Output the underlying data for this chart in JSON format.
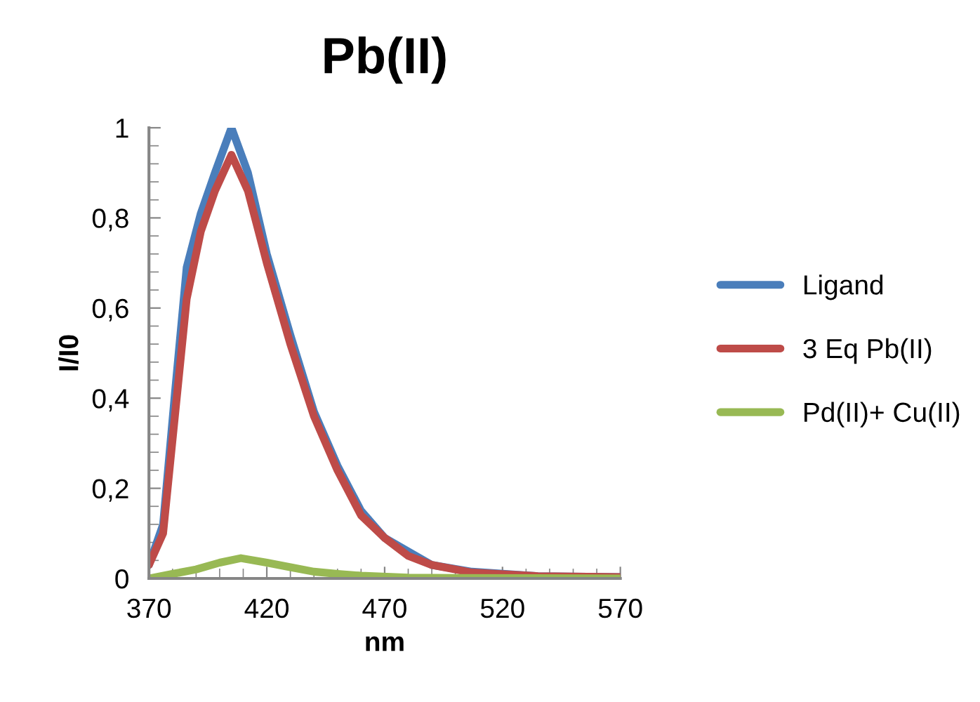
{
  "chart_data": {
    "type": "line",
    "title": "Pb(II)",
    "xlabel": "nm",
    "ylabel": "I/I0",
    "xlim": [
      370,
      570
    ],
    "xticks": [
      370,
      420,
      470,
      520,
      570
    ],
    "ylim": [
      0,
      1
    ],
    "yticks": [
      0,
      {
        "value": 0.2,
        "label": "0,2"
      },
      {
        "value": 0.4,
        "label": "0,4"
      },
      {
        "value": 0.6,
        "label": "0,6"
      },
      {
        "value": 0.8,
        "label": "0,8"
      },
      1
    ],
    "grid": false,
    "legend": "right",
    "marker": "none",
    "line_style": "solid",
    "series": [
      {
        "name": "Ligand",
        "color": "#4a7ebb",
        "x": [
          370,
          376,
          381,
          386,
          392,
          398,
          405,
          412,
          420,
          430,
          440,
          450,
          460,
          470,
          480,
          490,
          507,
          535,
          570
        ],
        "values": [
          0.03,
          0.12,
          0.41,
          0.69,
          0.81,
          0.9,
          1.0,
          0.9,
          0.72,
          0.54,
          0.37,
          0.25,
          0.15,
          0.09,
          0.06,
          0.03,
          0.015,
          0.005,
          0.003
        ]
      },
      {
        "name": "3 Eq Pb(II)",
        "color": "#be4b48",
        "x": [
          370,
          376,
          381,
          386,
          392,
          398,
          405,
          412,
          420,
          430,
          440,
          450,
          460,
          470,
          480,
          490,
          507,
          535,
          570
        ],
        "values": [
          0.03,
          0.1,
          0.36,
          0.62,
          0.77,
          0.86,
          0.94,
          0.86,
          0.7,
          0.52,
          0.36,
          0.24,
          0.14,
          0.09,
          0.05,
          0.03,
          0.013,
          0.005,
          0.003
        ]
      },
      {
        "name": "Pd(II)+ Cu(II)",
        "color": "#98b954",
        "x": [
          370,
          380,
          390,
          400,
          409,
          420,
          430,
          440,
          450,
          460,
          480,
          500,
          570
        ],
        "values": [
          0.0,
          0.01,
          0.02,
          0.035,
          0.045,
          0.035,
          0.025,
          0.015,
          0.01,
          0.006,
          0.002,
          0.001,
          0.0
        ]
      }
    ]
  }
}
